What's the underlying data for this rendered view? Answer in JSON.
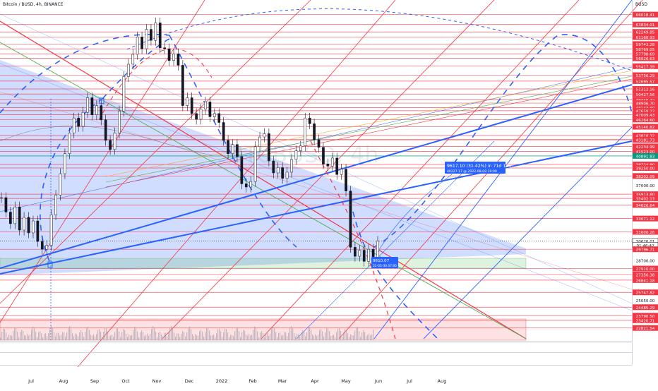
{
  "chart_data": {
    "type": "candlestick",
    "title": "Bitcoin / BUSD, 4h, BINANCE",
    "currency": "BUSD",
    "watermark": "BTCBUSD, 4h",
    "x_ticks": [
      "Jul",
      "Aug",
      "Sep",
      "Oct",
      "Nov",
      "Dec",
      "2022",
      "Feb",
      "Mar",
      "Apr",
      "May",
      "Jun",
      "Jul",
      "Aug"
    ],
    "price_ticks": [
      {
        "label": "66018.41",
        "value": 66018.41,
        "color": "#f23645"
      },
      {
        "label": "63834.01",
        "value": 63834.01,
        "color": "#f23645"
      },
      {
        "label": "62249.85",
        "value": 62249.85,
        "color": "#f23645"
      },
      {
        "label": "61168.93",
        "value": 61168.93,
        "color": "#f23645"
      },
      {
        "label": "59743.28",
        "value": 59743.28,
        "color": "#f23645"
      },
      {
        "label": "58769.05",
        "value": 58769.05,
        "color": "#f23645"
      },
      {
        "label": "57798.69",
        "value": 57798.69,
        "color": "#f23645"
      },
      {
        "label": "56926.63",
        "value": 56926.63,
        "color": "#f23645"
      },
      {
        "label": "55417.39",
        "value": 55417.39,
        "color": "#f23645"
      },
      {
        "label": "53756.29",
        "value": 53756.29,
        "color": "#f23645"
      },
      {
        "label": "52695.57",
        "value": 52695.57,
        "color": "#f23645"
      },
      {
        "label": "51312.16",
        "value": 51312.16,
        "color": "#f23645"
      },
      {
        "label": "50427.56",
        "value": 50427.56,
        "color": "#f23645"
      },
      {
        "label": "49446.72",
        "value": 49446.72,
        "color": "#f23645"
      },
      {
        "label": "48906.70",
        "value": 48906.7,
        "color": "#f23645"
      },
      {
        "label": "48143.80",
        "value": 48143.8,
        "color": "#f23645"
      },
      {
        "label": "47659.22",
        "value": 47659.22,
        "color": "#f23645"
      },
      {
        "label": "47009.43",
        "value": 47009.43,
        "color": "#f23645"
      },
      {
        "label": "46264.60",
        "value": 46264.6,
        "color": "#f23645"
      },
      {
        "label": "45140.82",
        "value": 45140.82,
        "color": "#f23645"
      },
      {
        "label": "43818.32",
        "value": 43818.32,
        "color": "#f23645"
      },
      {
        "label": "43217.50",
        "value": 43217.5,
        "color": "#f23645"
      },
      {
        "label": "43181.73",
        "value": 43181.73,
        "color": "#f23645"
      },
      {
        "label": "42234.99",
        "value": 42234.99,
        "color": "#f23645"
      },
      {
        "label": "41523.00",
        "value": 41523.0,
        "color": "#f23645"
      },
      {
        "label": "40891.83",
        "value": 40891.83,
        "color": "#089981"
      },
      {
        "label": "39724.90",
        "value": 39724.9,
        "color": "#f23645"
      },
      {
        "label": "39250.00",
        "value": 39250.0,
        "color": "#f23645"
      },
      {
        "label": "38202.09",
        "value": 38202.09,
        "color": "#f23645"
      },
      {
        "label": "37000.00",
        "value": 37000.0,
        "color": null
      },
      {
        "label": "35913.80",
        "value": 35913.8,
        "color": "#f23645"
      },
      {
        "label": "35402.13",
        "value": 35402.13,
        "color": "#f23645"
      },
      {
        "label": "34626.64",
        "value": 34626.64,
        "color": "#f23645"
      },
      {
        "label": "33071.12",
        "value": 33071.12,
        "color": "#f23645"
      },
      {
        "label": "31606.26",
        "value": 31606.26,
        "color": "#f23645"
      },
      {
        "label": "30626.01",
        "value": 30626.01,
        "color": "#131722"
      },
      {
        "label": "01:46:42",
        "value": 30220.0,
        "color": "#131722"
      },
      {
        "label": "29796.71",
        "value": 29796.71,
        "color": "#f23645"
      },
      {
        "label": "28700.00",
        "value": 28700.0,
        "color": null
      },
      {
        "label": "27910.00",
        "value": 27910.0,
        "color": "#f23645"
      },
      {
        "label": "27356.38",
        "value": 27356.38,
        "color": "#f23645"
      },
      {
        "label": "26841.18",
        "value": 26841.18,
        "color": "#f23645"
      },
      {
        "label": "25747.82",
        "value": 25747.82,
        "color": "#f23645"
      },
      {
        "label": "25050.00",
        "value": 25050.0,
        "color": null
      },
      {
        "label": "24485.29",
        "value": 24485.29,
        "color": "#f23645"
      },
      {
        "label": "23790.50",
        "value": 23790.5,
        "color": "#f23645"
      },
      {
        "label": "23420.71",
        "value": 23420.71,
        "color": "#f23645"
      },
      {
        "label": "22821.54",
        "value": 22821.54,
        "color": "#f23645"
      }
    ],
    "series_close_approx": [
      35500,
      33800,
      32500,
      34400,
      31800,
      33200,
      31500,
      32800,
      30600,
      29800,
      30200,
      33500,
      35800,
      38500,
      41200,
      44200,
      46500,
      45200,
      47400,
      49800,
      47000,
      48500,
      46200,
      43100,
      41800,
      44200,
      47600,
      53500,
      55800,
      57700,
      61200,
      58800,
      62800,
      60500,
      64200,
      59000,
      58800,
      56500,
      57800,
      55600,
      48500,
      49800,
      47200,
      46300,
      47900,
      49100,
      46700,
      47200,
      45800,
      43100,
      41200,
      42500,
      40800,
      37200,
      36800,
      37500,
      42200,
      43600,
      44100,
      40200,
      38600,
      39300,
      37900,
      38700,
      40400,
      41600,
      42300,
      46500,
      45600,
      43200,
      42100,
      39800,
      39500,
      40600,
      38400,
      39100,
      36300,
      30000,
      29100,
      29700,
      28600,
      29800,
      29000,
      30626
    ],
    "annotations": [
      {
        "label": "9617.10 (31.42%) in 71d 12h",
        "sublabel": "40227.17 @ 2022-08-09 19:00"
      },
      {
        "label": "9610.07",
        "sublabel": "22-05-30 07:00"
      }
    ]
  }
}
